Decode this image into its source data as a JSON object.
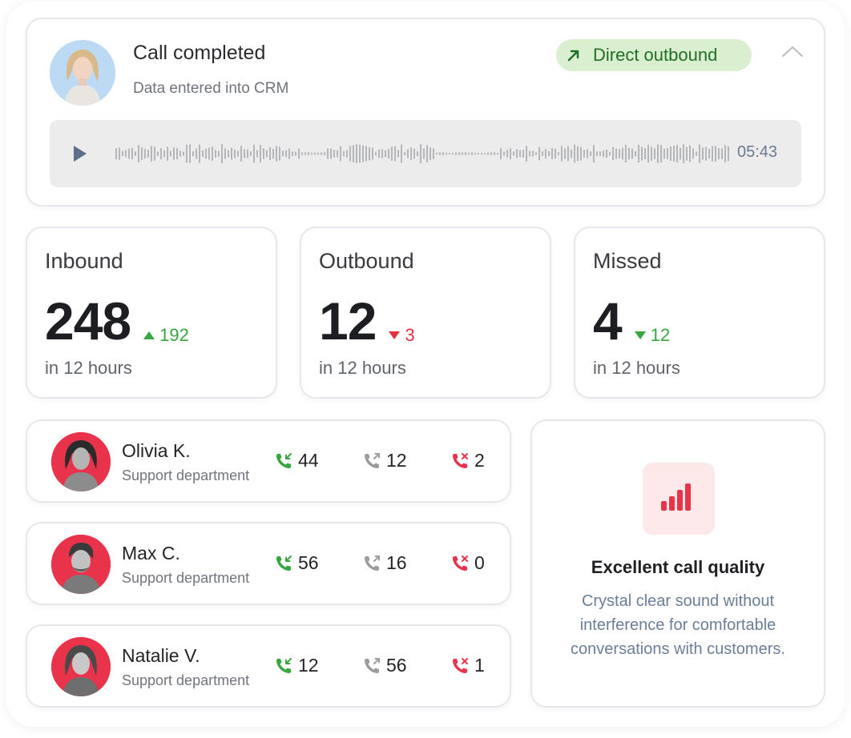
{
  "call": {
    "title": "Call completed",
    "subtitle": "Data entered into CRM",
    "direction_label": "Direct outbound",
    "duration": "05:43",
    "colors": {
      "badge_bg": "#d9efd0",
      "badge_text": "#216e27"
    }
  },
  "stats": [
    {
      "label": "Inbound",
      "value": "248",
      "delta": "192",
      "trend": "up",
      "period": "in 12 hours"
    },
    {
      "label": "Outbound",
      "value": "12",
      "delta": "3",
      "trend": "down-red",
      "period": "in 12 hours"
    },
    {
      "label": "Missed",
      "value": "4",
      "delta": "12",
      "trend": "down-green",
      "period": "in 12 hours"
    }
  ],
  "agents": [
    {
      "name": "Olivia K.",
      "department": "Support department",
      "inbound": "44",
      "outbound": "12",
      "missed": "2"
    },
    {
      "name": "Max C.",
      "department": "Support department",
      "inbound": "56",
      "outbound": "16",
      "missed": "0"
    },
    {
      "name": "Natalie V.",
      "department": "Support department",
      "inbound": "12",
      "outbound": "56",
      "missed": "1"
    }
  ],
  "quality": {
    "title": "Excellent call quality",
    "description": "Crystal clear sound without interference for comfortable conversations with customers.",
    "icon": "signal-bars-icon"
  },
  "colors": {
    "accent_red": "#e8334a",
    "green": "#36a63f",
    "red": "#e0333f"
  }
}
